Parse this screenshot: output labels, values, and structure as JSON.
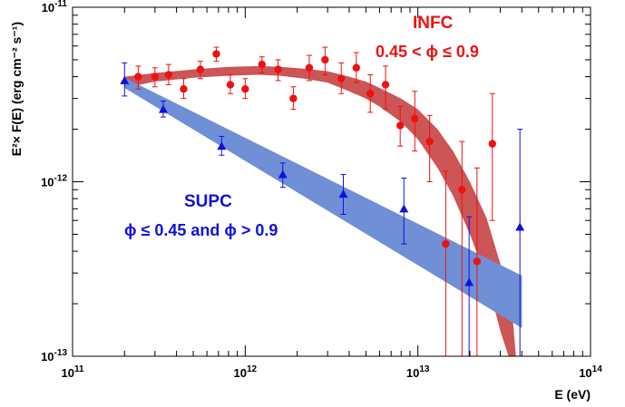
{
  "chart_data": {
    "type": "scatter",
    "xscale": "log",
    "yscale": "log",
    "xlim": [
      100000000000.0,
      100000000000000.0
    ],
    "ylim": [
      1e-13,
      1e-11
    ],
    "xlabel": "E (eV)",
    "ylabel": "E²× F(E) (erg cm⁻² s⁻¹)",
    "xtick_labels": [
      {
        "base": "10",
        "exp": "11"
      },
      {
        "base": "10",
        "exp": "12"
      },
      {
        "base": "10",
        "exp": "13"
      },
      {
        "base": "10",
        "exp": "14"
      }
    ],
    "ytick_labels": [
      {
        "base": "10",
        "exp": "-11"
      },
      {
        "base": "10",
        "exp": "-12"
      },
      {
        "base": "10",
        "exp": "-13"
      }
    ],
    "annotations": {
      "infc": {
        "name": "INFC",
        "phase": "0.45 < ϕ ≤ 0.9",
        "color": "#ee1111"
      },
      "supc": {
        "name": "SUPC",
        "phase": "ϕ ≤ 0.45 and ϕ > 0.9",
        "color": "#1111dd"
      }
    },
    "series": [
      {
        "name": "INFC",
        "color": "#ee1111",
        "marker": "circle",
        "points": [
          {
            "x": 240000000000.0,
            "y": 4e-12,
            "lo": 3.4e-12,
            "hi": 4.6e-12
          },
          {
            "x": 300000000000.0,
            "y": 4e-12,
            "lo": 3.5e-12,
            "hi": 4.5e-12
          },
          {
            "x": 360000000000.0,
            "y": 4.1e-12,
            "lo": 3.6e-12,
            "hi": 4.7e-12
          },
          {
            "x": 440000000000.0,
            "y": 3.4e-12,
            "lo": 3e-12,
            "hi": 3.9e-12
          },
          {
            "x": 550000000000.0,
            "y": 4.4e-12,
            "lo": 3.9e-12,
            "hi": 4.9e-12
          },
          {
            "x": 680000000000.0,
            "y": 5.4e-12,
            "lo": 4.9e-12,
            "hi": 5.9e-12
          },
          {
            "x": 820000000000.0,
            "y": 3.6e-12,
            "lo": 3.2e-12,
            "hi": 4.1e-12
          },
          {
            "x": 1000000000000.0,
            "y": 3.4e-12,
            "lo": 3e-12,
            "hi": 3.9e-12
          },
          {
            "x": 1250000000000.0,
            "y": 4.7e-12,
            "lo": 4.2e-12,
            "hi": 5.2e-12
          },
          {
            "x": 1550000000000.0,
            "y": 4.4e-12,
            "lo": 3.8e-12,
            "hi": 5e-12
          },
          {
            "x": 1900000000000.0,
            "y": 3e-12,
            "lo": 2.6e-12,
            "hi": 3.5e-12
          },
          {
            "x": 2350000000000.0,
            "y": 4.5e-12,
            "lo": 3.8e-12,
            "hi": 5.3e-12
          },
          {
            "x": 2900000000000.0,
            "y": 5e-12,
            "lo": 4.1e-12,
            "hi": 5.9e-12
          },
          {
            "x": 3600000000000.0,
            "y": 3.9e-12,
            "lo": 3.2e-12,
            "hi": 4.8e-12
          },
          {
            "x": 4400000000000.0,
            "y": 4.5e-12,
            "lo": 3.7e-12,
            "hi": 5.5e-12
          },
          {
            "x": 5300000000000.0,
            "y": 3.2e-12,
            "lo": 2.5e-12,
            "hi": 4.1e-12
          },
          {
            "x": 6500000000000.0,
            "y": 3.6e-12,
            "lo": 2.6e-12,
            "hi": 4.6e-12
          },
          {
            "x": 7900000000000.0,
            "y": 2.1e-12,
            "lo": 1.6e-12,
            "hi": 2.7e-12
          },
          {
            "x": 9600000000000.0,
            "y": 2.3e-12,
            "lo": 1.5e-12,
            "hi": 3.3e-12
          },
          {
            "x": 11700000000000.0,
            "y": 1.7e-12,
            "lo": 1e-12,
            "hi": 2.4e-12
          },
          {
            "x": 14500000000000.0,
            "y": 4.4e-13,
            "lo": 1e-13,
            "hi": 1.15e-12
          },
          {
            "x": 18000000000000.0,
            "y": 9e-13,
            "lo": 1e-13,
            "hi": 1.7e-12
          },
          {
            "x": 22000000000000.0,
            "y": 3.5e-13,
            "lo": 1e-13,
            "hi": 1.2e-12
          },
          {
            "x": 27000000000000.0,
            "y": 1.65e-12,
            "lo": 6e-13,
            "hi": 3.2e-12
          }
        ]
      },
      {
        "name": "SUPC",
        "color": "#1111dd",
        "marker": "triangle",
        "points": [
          {
            "x": 200000000000.0,
            "y": 3.8e-12,
            "lo": 3.1e-12,
            "hi": 4.8e-12
          },
          {
            "x": 335000000000.0,
            "y": 2.6e-12,
            "lo": 2.35e-12,
            "hi": 2.9e-12
          },
          {
            "x": 730000000000.0,
            "y": 1.6e-12,
            "lo": 1.42e-12,
            "hi": 1.82e-12
          },
          {
            "x": 1650000000000.0,
            "y": 1.1e-12,
            "lo": 9.3e-13,
            "hi": 1.28e-12
          },
          {
            "x": 3700000000000.0,
            "y": 8.5e-13,
            "lo": 6.5e-13,
            "hi": 1.1e-12
          },
          {
            "x": 8300000000000.0,
            "y": 7e-13,
            "lo": 4.4e-13,
            "hi": 1.05e-12
          },
          {
            "x": 19800000000000.0,
            "y": 2.65e-13,
            "lo": 1e-13,
            "hi": 6.3e-13
          },
          {
            "x": 39000000000000.0,
            "y": 5.5e-13,
            "lo": 1e-13,
            "hi": 2e-12
          }
        ]
      }
    ],
    "bands": [
      {
        "name": "INFC",
        "color": "#cc5555",
        "lower": [
          [
            200000000000.0,
            3.45e-12
          ],
          [
            300000000000.0,
            3.75e-12
          ],
          [
            500000000000.0,
            3.95e-12
          ],
          [
            800000000000.0,
            4.05e-12
          ],
          [
            1200000000000.0,
            4.1e-12
          ],
          [
            1600000000000.0,
            4.05e-12
          ],
          [
            2200000000000.0,
            3.9e-12
          ],
          [
            3000000000000.0,
            3.7e-12
          ],
          [
            4000000000000.0,
            3.3e-12
          ],
          [
            5000000000000.0,
            3e-12
          ],
          [
            6000000000000.0,
            2.7e-12
          ],
          [
            8000000000000.0,
            2.2e-12
          ],
          [
            10000000000000.0,
            1.75e-12
          ],
          [
            13000000000000.0,
            1.2e-12
          ],
          [
            16000000000000.0,
            8.3e-13
          ],
          [
            20000000000000.0,
            5e-13
          ],
          [
            25000000000000.0,
            2.8e-13
          ],
          [
            30000000000000.0,
            1.4e-13
          ],
          [
            33500000000000.0,
            1e-13
          ]
        ],
        "upper": [
          [
            200000000000.0,
            4e-12
          ],
          [
            300000000000.0,
            4.2e-12
          ],
          [
            500000000000.0,
            4.4e-12
          ],
          [
            800000000000.0,
            4.55e-12
          ],
          [
            1200000000000.0,
            4.6e-12
          ],
          [
            1600000000000.0,
            4.55e-12
          ],
          [
            2200000000000.0,
            4.45e-12
          ],
          [
            3000000000000.0,
            4.3e-12
          ],
          [
            4000000000000.0,
            4e-12
          ],
          [
            5000000000000.0,
            3.75e-12
          ],
          [
            6000000000000.0,
            3.45e-12
          ],
          [
            8000000000000.0,
            3e-12
          ],
          [
            10000000000000.0,
            2.6e-12
          ],
          [
            13000000000000.0,
            2e-12
          ],
          [
            16000000000000.0,
            1.5e-12
          ],
          [
            20000000000000.0,
            1e-12
          ],
          [
            25000000000000.0,
            6.2e-13
          ],
          [
            30000000000000.0,
            3.4e-13
          ],
          [
            35500000000000.0,
            1.6e-13
          ],
          [
            37000000000000.0,
            1e-13
          ]
        ]
      },
      {
        "name": "SUPC",
        "color": "#6f8fd6",
        "lower": [
          [
            200000000000.0,
            3.45e-12
          ],
          [
            40000000000000.0,
            1.45e-13
          ]
        ],
        "upper": [
          [
            200000000000.0,
            3.95e-12
          ],
          [
            40000000000000.0,
            2.9e-13
          ]
        ]
      }
    ],
    "grid": false
  }
}
